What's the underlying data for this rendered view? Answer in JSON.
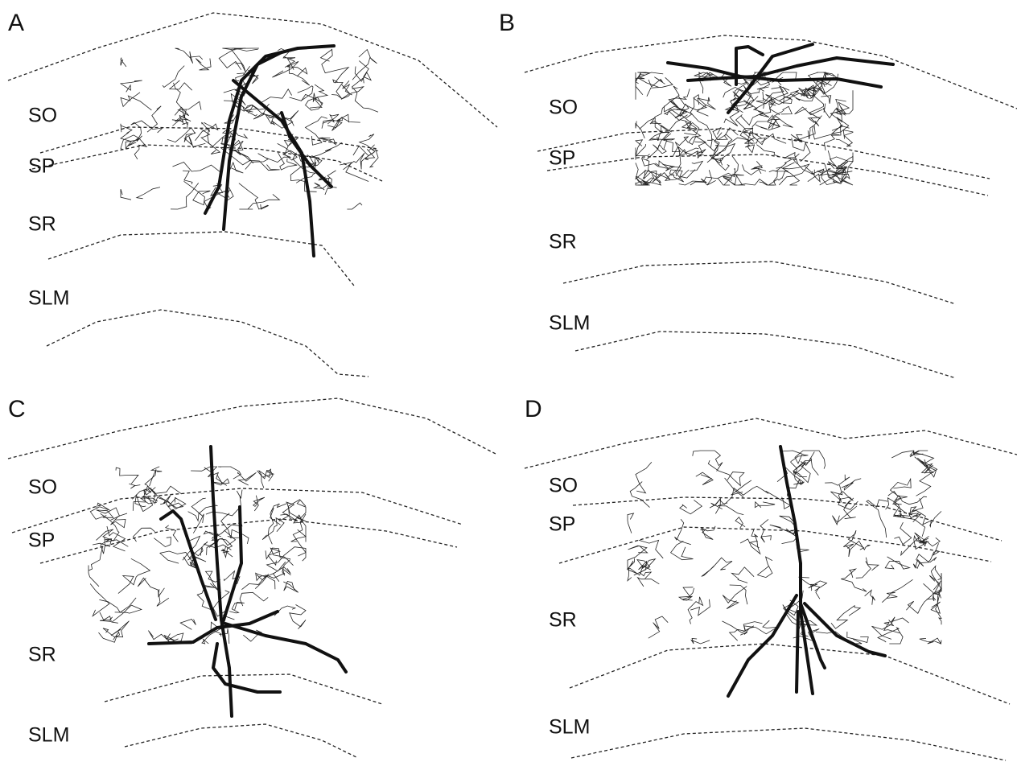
{
  "panels": [
    {
      "label": "A",
      "layers": [
        "SO",
        "SP",
        "SR",
        "SLM"
      ]
    },
    {
      "label": "B",
      "layers": [
        "SO",
        "SP",
        "SR",
        "SLM"
      ]
    },
    {
      "label": "C",
      "layers": [
        "SO",
        "SP",
        "SR",
        "SLM"
      ]
    },
    {
      "label": "D",
      "layers": [
        "SO",
        "SP",
        "SR",
        "SLM"
      ]
    }
  ]
}
